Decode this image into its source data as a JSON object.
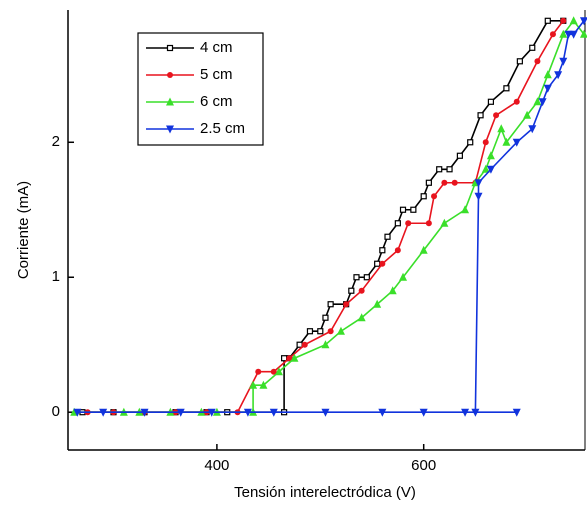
{
  "chart_data": {
    "type": "line",
    "xlabel": "Tensión interelectródica (V)",
    "ylabel": "Corriente (mA)",
    "xlim": [
      256,
      756
    ],
    "xticks": [
      400,
      600
    ],
    "ylim": [
      -0.28,
      2.98
    ],
    "yticks": [
      0,
      1,
      2
    ],
    "legend": "top-left",
    "series": [
      {
        "name": "4 cm",
        "color": "#000000",
        "marker": "square",
        "x": [
          270,
          300,
          330,
          360,
          390,
          410,
          465,
          465,
          470,
          480,
          490,
          500,
          505,
          510,
          525,
          530,
          535,
          545,
          555,
          560,
          565,
          575,
          580,
          590,
          600,
          605,
          615,
          625,
          635,
          645,
          655,
          665,
          680,
          693,
          705,
          720,
          735
        ],
        "values": [
          0,
          0,
          0,
          0,
          0,
          0,
          0,
          0.4,
          0.4,
          0.5,
          0.6,
          0.6,
          0.7,
          0.8,
          0.8,
          0.9,
          1.0,
          1.0,
          1.1,
          1.2,
          1.3,
          1.4,
          1.5,
          1.5,
          1.6,
          1.7,
          1.8,
          1.8,
          1.9,
          2.0,
          2.2,
          2.3,
          2.4,
          2.6,
          2.7,
          2.9,
          2.9
        ]
      },
      {
        "name": "5 cm",
        "color": "#e8141e",
        "marker": "circle",
        "x": [
          275,
          300,
          330,
          360,
          390,
          420,
          440,
          455,
          470,
          485,
          510,
          525,
          540,
          560,
          575,
          585,
          605,
          610,
          620,
          630,
          650,
          660,
          670,
          690,
          710,
          725,
          735
        ],
        "values": [
          0,
          0,
          0,
          0,
          0,
          0,
          0.3,
          0.3,
          0.4,
          0.5,
          0.6,
          0.8,
          0.9,
          1.1,
          1.2,
          1.4,
          1.4,
          1.6,
          1.7,
          1.7,
          1.7,
          2.0,
          2.2,
          2.3,
          2.6,
          2.8,
          2.9
        ]
      },
      {
        "name": "6 cm",
        "color": "#3adf2a",
        "marker": "triangle-up",
        "x": [
          262,
          310,
          325,
          355,
          385,
          400,
          435,
          435,
          445,
          460,
          475,
          505,
          520,
          540,
          555,
          570,
          580,
          600,
          620,
          640,
          650,
          660,
          665,
          675,
          680,
          700,
          710,
          720,
          735,
          745,
          755
        ],
        "values": [
          0,
          0,
          0,
          0,
          0,
          0,
          0,
          0.2,
          0.2,
          0.3,
          0.4,
          0.5,
          0.6,
          0.7,
          0.8,
          0.9,
          1.0,
          1.2,
          1.4,
          1.5,
          1.7,
          1.8,
          1.9,
          2.1,
          2.0,
          2.2,
          2.3,
          2.5,
          2.8,
          2.9,
          2.8
        ]
      },
      {
        "name": "2.5 cm",
        "color": "#1133dd",
        "marker": "triangle-down",
        "x": [
          265,
          290,
          330,
          365,
          395,
          430,
          455,
          505,
          560,
          600,
          640,
          690,
          650,
          653,
          653,
          665,
          690,
          705,
          715,
          720,
          730,
          735,
          740,
          745,
          755
        ],
        "values": [
          0,
          0,
          0,
          0,
          0,
          0,
          0,
          0,
          0,
          0,
          0,
          0,
          0,
          1.6,
          1.7,
          1.8,
          2.0,
          2.1,
          2.3,
          2.4,
          2.5,
          2.6,
          2.8,
          2.8,
          2.9
        ]
      }
    ]
  }
}
